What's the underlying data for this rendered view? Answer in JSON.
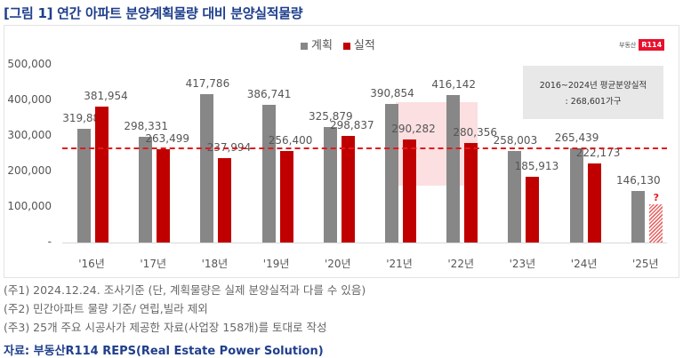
{
  "title": "[그림 1] 연간 아파트 분양계획물량 대비 분양실적물량",
  "legend": [
    {
      "label": "계획",
      "color": "#878787"
    },
    {
      "label": "실적",
      "color": "#c00000"
    }
  ],
  "logo": {
    "text": "부동산",
    "badge": "R114"
  },
  "avg_box": {
    "line1": "2016~2024년 평균분양실적",
    "line2": ": 268,601가구"
  },
  "notes": [
    "(주1) 2024.12.24. 조사기준 (단, 계획물량은 실제 분양실적과 다를 수 있음)",
    "(주2) 민간아파트 물량 기준/ 연립,빌라 제외",
    "(주3) 25개 주요 시공사가 제공한 자료(사업장 158개)를 토대로 작성"
  ],
  "source": "자료: 부동산R114 REPS(Real Estate Power Solution)",
  "yticks": [
    "500,000",
    "400,000",
    "300,000",
    "200,000",
    "100,000",
    "-"
  ],
  "chart_data": {
    "type": "bar",
    "title": "[그림 1] 연간 아파트 분양계획물량 대비 분양실적물량",
    "categories": [
      "'16년",
      "'17년",
      "'18년",
      "'19년",
      "'20년",
      "'21년",
      "'22년",
      "'23년",
      "'24년",
      "'25년"
    ],
    "series": [
      {
        "name": "계획",
        "values": [
          319888,
          298331,
          417786,
          386741,
          325879,
          390854,
          416142,
          258003,
          265439,
          146130
        ],
        "labels": [
          "319,888",
          "298,331",
          "417,786",
          "386,741",
          "325,879",
          "390,854",
          "416,142",
          "258,003",
          "265,439",
          "146,130"
        ]
      },
      {
        "name": "실적",
        "values": [
          381954,
          263499,
          237994,
          256400,
          298837,
          290282,
          280356,
          185913,
          222173,
          null
        ],
        "labels": [
          "381,954",
          "263,499",
          "237,994",
          "256,400",
          "298,837",
          "290,282",
          "280,356",
          "185,913",
          "222,173",
          "?"
        ]
      }
    ],
    "reference_line": {
      "label": "2016~2024년 평균분양실적",
      "value": 268601,
      "style": "dashed",
      "color": "#e3191b"
    },
    "xlabel": "",
    "ylabel": "",
    "ylim": [
      0,
      500000
    ],
    "grid": false,
    "legend_position": "top"
  }
}
